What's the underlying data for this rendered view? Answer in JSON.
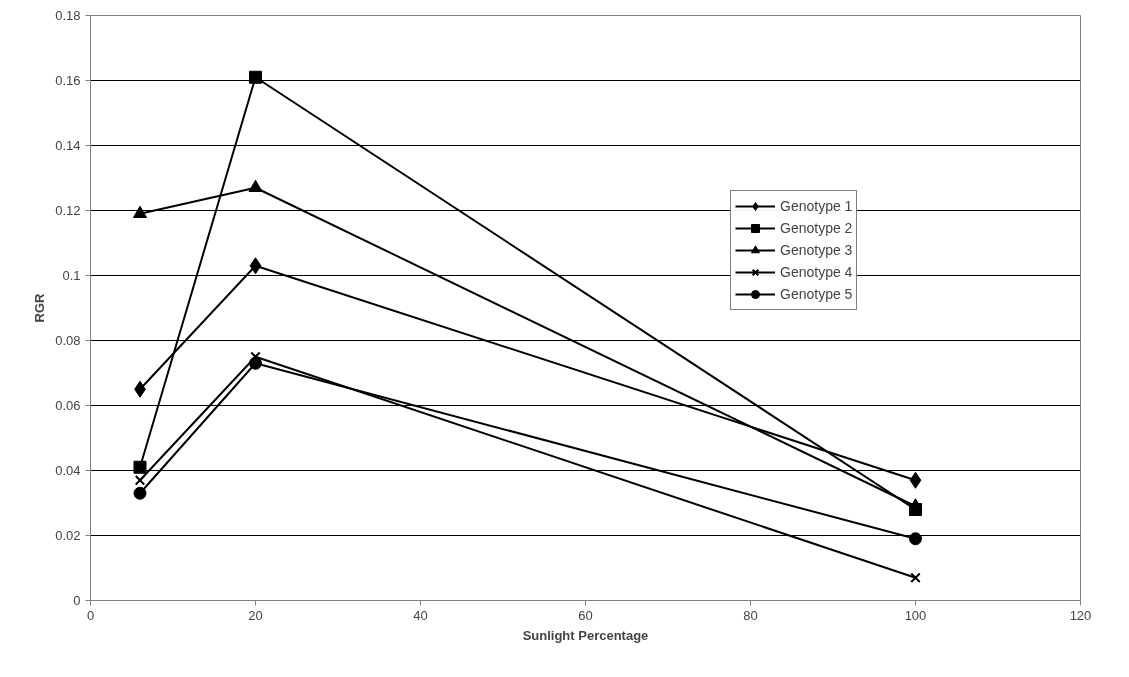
{
  "chart_data": {
    "type": "line",
    "xlabel": "Sunlight Percentage",
    "ylabel": "RGR",
    "x": [
      6,
      20,
      100
    ],
    "series": [
      {
        "name": "Genotype 1",
        "color": "#000000",
        "marker": "diamond",
        "values": [
          0.065,
          0.103,
          0.037
        ]
      },
      {
        "name": "Genotype 2",
        "color": "#000000",
        "marker": "square",
        "values": [
          0.041,
          0.161,
          0.028
        ]
      },
      {
        "name": "Genotype 3",
        "color": "#000000",
        "marker": "triangle",
        "values": [
          0.119,
          0.127,
          0.029
        ]
      },
      {
        "name": "Genotype 4",
        "color": "#000000",
        "marker": "cross",
        "values": [
          0.037,
          0.075,
          0.007
        ]
      },
      {
        "name": "Genotype 5",
        "color": "#000000",
        "marker": "circle",
        "values": [
          0.033,
          0.073,
          0.019
        ]
      }
    ],
    "xlim": [
      0,
      120
    ],
    "xticks": [
      0,
      20,
      40,
      60,
      80,
      100,
      120
    ],
    "ylim": [
      0,
      0.18
    ],
    "yticks": [
      0,
      0.02,
      0.04,
      0.06,
      0.08,
      0.1,
      0.12,
      0.14,
      0.16,
      0.18
    ],
    "grid": "y",
    "legend": "right",
    "line_style": "solid"
  }
}
